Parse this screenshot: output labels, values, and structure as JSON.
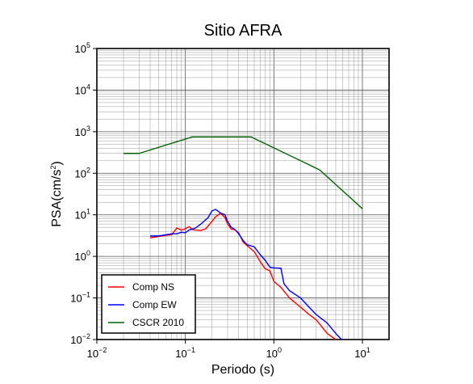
{
  "chart_data": {
    "type": "line",
    "title": "Sitio AFRA",
    "xlabel": "Periodo (s)",
    "ylabel_main": "PSA(cm/s",
    "ylabel_sup": "2",
    "ylabel_tail": ")",
    "xscale": "log",
    "yscale": "log",
    "xlim": [
      0.01,
      20
    ],
    "ylim": [
      0.01,
      100000
    ],
    "grid": true,
    "legend_position": "bottom-left",
    "x_ticks": [
      {
        "value": 0.01,
        "base": "10",
        "exp": "−2"
      },
      {
        "value": 0.1,
        "base": "10",
        "exp": "−1"
      },
      {
        "value": 1,
        "base": "10",
        "exp": "0"
      },
      {
        "value": 10,
        "base": "10",
        "exp": "1"
      }
    ],
    "y_ticks": [
      {
        "value": 0.01,
        "base": "10",
        "exp": "−2"
      },
      {
        "value": 0.1,
        "base": "10",
        "exp": "−1"
      },
      {
        "value": 1,
        "base": "10",
        "exp": "0"
      },
      {
        "value": 10,
        "base": "10",
        "exp": "1"
      },
      {
        "value": 100,
        "base": "10",
        "exp": "2"
      },
      {
        "value": 1000,
        "base": "10",
        "exp": "3"
      },
      {
        "value": 10000,
        "base": "10",
        "exp": "4"
      },
      {
        "value": 100000,
        "base": "10",
        "exp": "5"
      }
    ],
    "series": [
      {
        "name": "Comp NS",
        "color": "#ff0000",
        "points": [
          [
            0.04,
            2.8
          ],
          [
            0.05,
            3.0
          ],
          [
            0.06,
            3.2
          ],
          [
            0.07,
            3.3
          ],
          [
            0.08,
            4.8
          ],
          [
            0.09,
            4.3
          ],
          [
            0.1,
            4.6
          ],
          [
            0.11,
            5.2
          ],
          [
            0.12,
            4.4
          ],
          [
            0.13,
            4.3
          ],
          [
            0.15,
            4.2
          ],
          [
            0.17,
            4.6
          ],
          [
            0.2,
            7.0
          ],
          [
            0.22,
            9.0
          ],
          [
            0.25,
            11.0
          ],
          [
            0.28,
            8.5
          ],
          [
            0.3,
            6.0
          ],
          [
            0.33,
            4.5
          ],
          [
            0.36,
            4.4
          ],
          [
            0.4,
            3.7
          ],
          [
            0.45,
            2.2
          ],
          [
            0.5,
            1.8
          ],
          [
            0.6,
            1.3
          ],
          [
            0.7,
            0.75
          ],
          [
            0.8,
            0.5
          ],
          [
            0.9,
            0.45
          ],
          [
            1.0,
            0.25
          ],
          [
            1.2,
            0.18
          ],
          [
            1.5,
            0.1
          ],
          [
            2.0,
            0.06
          ],
          [
            2.5,
            0.04
          ],
          [
            3.0,
            0.03
          ],
          [
            3.5,
            0.02
          ],
          [
            4.0,
            0.014
          ],
          [
            5.0,
            0.01
          ]
        ]
      },
      {
        "name": "Comp EW",
        "color": "#0000ff",
        "points": [
          [
            0.04,
            3.1
          ],
          [
            0.05,
            3.1
          ],
          [
            0.06,
            3.3
          ],
          [
            0.07,
            3.5
          ],
          [
            0.08,
            3.5
          ],
          [
            0.09,
            3.8
          ],
          [
            0.1,
            3.7
          ],
          [
            0.11,
            4.3
          ],
          [
            0.13,
            4.8
          ],
          [
            0.15,
            6.0
          ],
          [
            0.18,
            8.5
          ],
          [
            0.2,
            12.5
          ],
          [
            0.22,
            13.5
          ],
          [
            0.25,
            11.0
          ],
          [
            0.28,
            10.0
          ],
          [
            0.3,
            7.0
          ],
          [
            0.33,
            5.0
          ],
          [
            0.36,
            4.5
          ],
          [
            0.4,
            3.5
          ],
          [
            0.45,
            2.4
          ],
          [
            0.5,
            1.9
          ],
          [
            0.6,
            1.7
          ],
          [
            0.7,
            1.1
          ],
          [
            0.8,
            0.8
          ],
          [
            0.9,
            0.55
          ],
          [
            1.0,
            0.53
          ],
          [
            1.2,
            0.52
          ],
          [
            1.3,
            0.22
          ],
          [
            1.5,
            0.15
          ],
          [
            2.0,
            0.1
          ],
          [
            2.5,
            0.06
          ],
          [
            3.0,
            0.04
          ],
          [
            4.0,
            0.025
          ],
          [
            5.0,
            0.014
          ],
          [
            5.8,
            0.01
          ]
        ]
      },
      {
        "name": "CSCR 2010",
        "color": "#006400",
        "points": [
          [
            0.02,
            300
          ],
          [
            0.03,
            300
          ],
          [
            0.12,
            750
          ],
          [
            0.55,
            750
          ],
          [
            3.3,
            120
          ],
          [
            10,
            14
          ]
        ]
      }
    ]
  }
}
